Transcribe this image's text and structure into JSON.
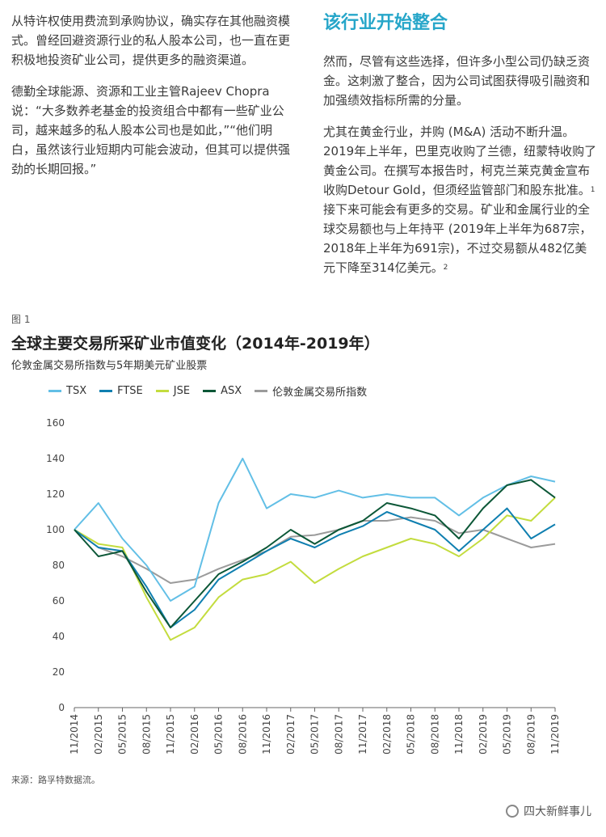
{
  "left_column": {
    "paragraph_1": "从特许权使用费流到承购协议，确实存在其他融资模式。曾经回避资源行业的私人股本公司，也一直在更积极地投资矿业公司，提供更多的融资渠道。",
    "paragraph_2": "德勤全球能源、资源和工业主管Rajeev Chopra说：“大多数养老基金的投资组合中都有一些矿业公司，越来越多的私人股本公司也是如此，”“他们明白，虽然该行业短期内可能会波动，但其可以提供强劲的长期回报。”"
  },
  "right_column": {
    "heading": "该行业开始整合",
    "paragraph_1": "然而，尽管有这些选择，但许多小型公司仍缺乏资金。这刺激了整合，因为公司试图获得吸引融资和加强绩效指标所需的分量。",
    "paragraph_2": "尤其在黄金行业，并购 (M&A) 活动不断升温。2019年上半年，巴里克收购了兰德，纽蒙特收购了黄金公司。在撰写本报告时，柯克兰莱克黄金宣布收购Detour Gold，但须经监管部门和股东批准。",
    "footnote_1": "1",
    "paragraph_2b": "接下来可能会有更多的交易。矿业和金属行业的全球交易额也与上年持平 (2019年上半年为687宗，2018年上半年为691宗)，不过交易额从482亿美元下降至314亿美元。",
    "footnote_2": "2"
  },
  "figure": {
    "label": "图 1",
    "title": "全球主要交易所采矿业市值变化（2014年-2019年）",
    "subtitle": "伦敦金属交易所指数与5年期美元矿业股票",
    "source": "来源：路孚特数据流。"
  },
  "watermark": "四大新鲜事儿",
  "colors": {
    "TSX": "#62bfe6",
    "FTSE": "#0f7fb0",
    "JSE": "#c3dc3e",
    "ASX": "#0c5737",
    "LME": "#9b9b9b",
    "heading": "#26a6c9"
  },
  "chart_data": {
    "type": "line",
    "grid": false,
    "legend_position": "top",
    "ylim": [
      0,
      160
    ],
    "y_ticks": [
      0,
      20,
      40,
      60,
      80,
      100,
      120,
      140,
      160
    ],
    "x_tick_labels": [
      "11/2014",
      "02/2015",
      "05/2015",
      "08/2015",
      "11/2015",
      "02/2016",
      "05/2016",
      "08/2016",
      "11/2016",
      "02/2017",
      "05/2017",
      "08/2017",
      "11/2017",
      "02/2018",
      "05/2018",
      "08/2018",
      "11/2018",
      "02/2019",
      "05/2019",
      "08/2019",
      "11/2019"
    ],
    "x": [
      "11/2014",
      "02/2015",
      "05/2015",
      "08/2015",
      "11/2015",
      "02/2016",
      "05/2016",
      "08/2016",
      "11/2016",
      "02/2017",
      "05/2017",
      "08/2017",
      "11/2017",
      "02/2018",
      "05/2018",
      "08/2018",
      "11/2018",
      "02/2019",
      "05/2019",
      "08/2019",
      "11/2019"
    ],
    "series": [
      {
        "name": "TSX",
        "values": [
          100,
          115,
          95,
          80,
          60,
          68,
          115,
          140,
          112,
          120,
          118,
          122,
          118,
          120,
          118,
          118,
          108,
          118,
          125,
          130,
          127
        ]
      },
      {
        "name": "FTSE",
        "values": [
          100,
          90,
          88,
          68,
          45,
          55,
          72,
          80,
          88,
          95,
          90,
          97,
          102,
          110,
          105,
          100,
          88,
          100,
          112,
          95,
          103
        ]
      },
      {
        "name": "JSE",
        "values": [
          100,
          92,
          90,
          62,
          38,
          45,
          62,
          72,
          75,
          82,
          70,
          78,
          85,
          90,
          95,
          92,
          85,
          95,
          108,
          105,
          118
        ]
      },
      {
        "name": "ASX",
        "values": [
          100,
          85,
          88,
          65,
          45,
          60,
          75,
          82,
          90,
          100,
          92,
          100,
          105,
          115,
          112,
          108,
          95,
          112,
          125,
          128,
          118
        ]
      },
      {
        "name": "伦敦金属交易所指数",
        "values": [
          100,
          90,
          85,
          78,
          70,
          72,
          78,
          83,
          88,
          96,
          97,
          100,
          105,
          105,
          107,
          105,
          98,
          100,
          95,
          90,
          92
        ]
      }
    ]
  }
}
